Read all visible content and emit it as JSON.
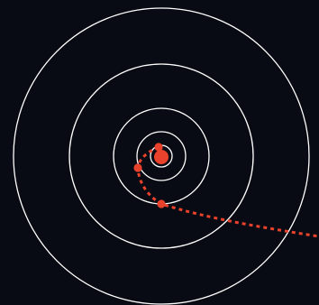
{
  "colors": {
    "background": "#080b13",
    "orbit": "#ffffff",
    "trajectory": "#e8412c",
    "central_body": "#e8412c",
    "marker": "#e8412c"
  },
  "orbits": [
    {
      "name": "orbit-1"
    },
    {
      "name": "orbit-2"
    },
    {
      "name": "orbit-3"
    },
    {
      "name": "orbit-4"
    },
    {
      "name": "orbit-5"
    }
  ],
  "markers": [
    {
      "name": "trajectory-marker-1"
    },
    {
      "name": "trajectory-marker-2"
    },
    {
      "name": "trajectory-marker-3"
    }
  ]
}
